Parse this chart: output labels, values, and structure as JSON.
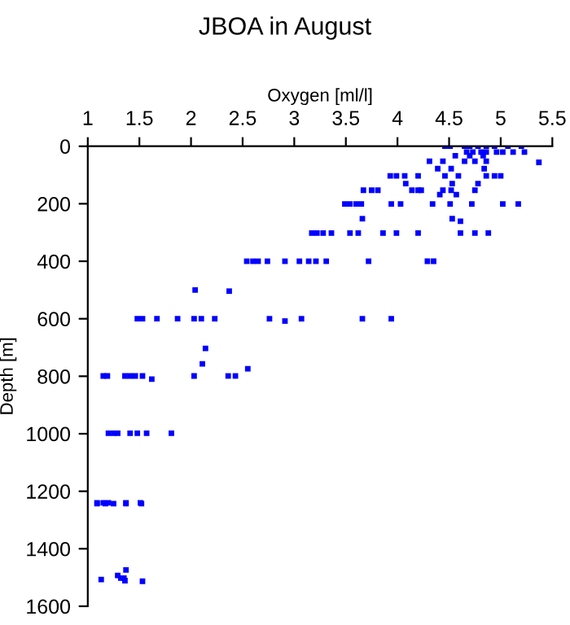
{
  "chart_data": {
    "type": "scatter",
    "title": "JBOA in August",
    "xlabel": "Oxygen [ml/l]",
    "ylabel": "Depth [m]",
    "x": [
      4.46,
      4.51,
      4.65,
      4.7,
      4.78,
      4.86,
      4.94,
      5.07,
      5.2,
      4.67,
      4.73,
      4.81,
      4.86,
      4.96,
      5.02,
      5.12,
      5.23,
      4.56,
      4.7,
      4.83,
      4.31,
      4.44,
      4.65,
      4.75,
      4.86,
      5.37,
      4.39,
      4.52,
      4.84,
      3.93,
      3.99,
      4.07,
      4.2,
      4.46,
      4.59,
      4.86,
      4.94,
      5.0,
      4.08,
      4.53,
      4.78,
      3.67,
      3.75,
      3.81,
      4.14,
      4.2,
      4.23,
      4.44,
      4.52,
      4.75,
      4.41,
      4.57,
      3.49,
      3.54,
      3.6,
      3.65,
      3.94,
      4.03,
      4.34,
      4.51,
      4.72,
      5.02,
      5.17,
      3.66,
      4.53,
      4.61,
      3.17,
      3.22,
      3.28,
      3.36,
      3.54,
      3.62,
      3.86,
      3.99,
      4.2,
      4.61,
      4.75,
      4.88,
      2.54,
      2.6,
      2.65,
      2.74,
      2.91,
      3.05,
      3.14,
      3.21,
      3.31,
      3.72,
      4.29,
      4.35,
      2.04,
      2.37,
      1.48,
      1.53,
      1.67,
      1.87,
      2.03,
      2.1,
      2.23,
      2.76,
      2.91,
      3.07,
      3.66,
      3.94,
      2.14,
      2.11,
      2.55,
      1.15,
      1.19,
      1.36,
      1.41,
      1.46,
      1.53,
      1.62,
      2.03,
      2.36,
      2.43,
      1.2,
      1.25,
      1.29,
      1.41,
      1.48,
      1.57,
      1.81,
      1.09,
      1.15,
      1.2,
      1.37,
      1.51,
      1.09,
      1.17,
      1.25,
      1.37,
      1.52,
      1.37,
      1.29,
      1.32,
      1.35,
      1.13,
      1.53,
      1.36
    ],
    "values": [
      0,
      0,
      0,
      0,
      0,
      0,
      0,
      0,
      0,
      20,
      20,
      20,
      20,
      20,
      20,
      20,
      20,
      33,
      33,
      33,
      52,
      52,
      52,
      52,
      52,
      56,
      78,
      78,
      78,
      103,
      103,
      103,
      103,
      103,
      103,
      103,
      103,
      103,
      130,
      130,
      130,
      153,
      153,
      153,
      153,
      153,
      153,
      153,
      153,
      153,
      168,
      168,
      201,
      201,
      201,
      201,
      201,
      201,
      201,
      201,
      201,
      201,
      201,
      252,
      252,
      261,
      302,
      302,
      302,
      302,
      302,
      302,
      302,
      302,
      302,
      302,
      302,
      302,
      400,
      400,
      400,
      400,
      400,
      400,
      400,
      400,
      400,
      400,
      400,
      400,
      500,
      504,
      600,
      600,
      600,
      600,
      600,
      600,
      600,
      600,
      608,
      600,
      600,
      600,
      703,
      757,
      774,
      799,
      799,
      799,
      799,
      799,
      799,
      810,
      799,
      799,
      799,
      998,
      998,
      998,
      998,
      998,
      998,
      998,
      1240,
      1240,
      1240,
      1240,
      1240,
      1243,
      1243,
      1243,
      1243,
      1243,
      1474,
      1493,
      1502,
      1502,
      1507,
      1513,
      1511
    ],
    "color": "#0000ff",
    "marker": "square",
    "xlim": [
      1,
      5.5
    ],
    "xticks": [
      1,
      1.5,
      2,
      2.5,
      3,
      3.5,
      4,
      4.5,
      5,
      5.5
    ],
    "ylim": [
      1600,
      0
    ],
    "yticks": [
      0,
      200,
      400,
      600,
      800,
      1000,
      1200,
      1400,
      1600
    ],
    "grid": false
  }
}
